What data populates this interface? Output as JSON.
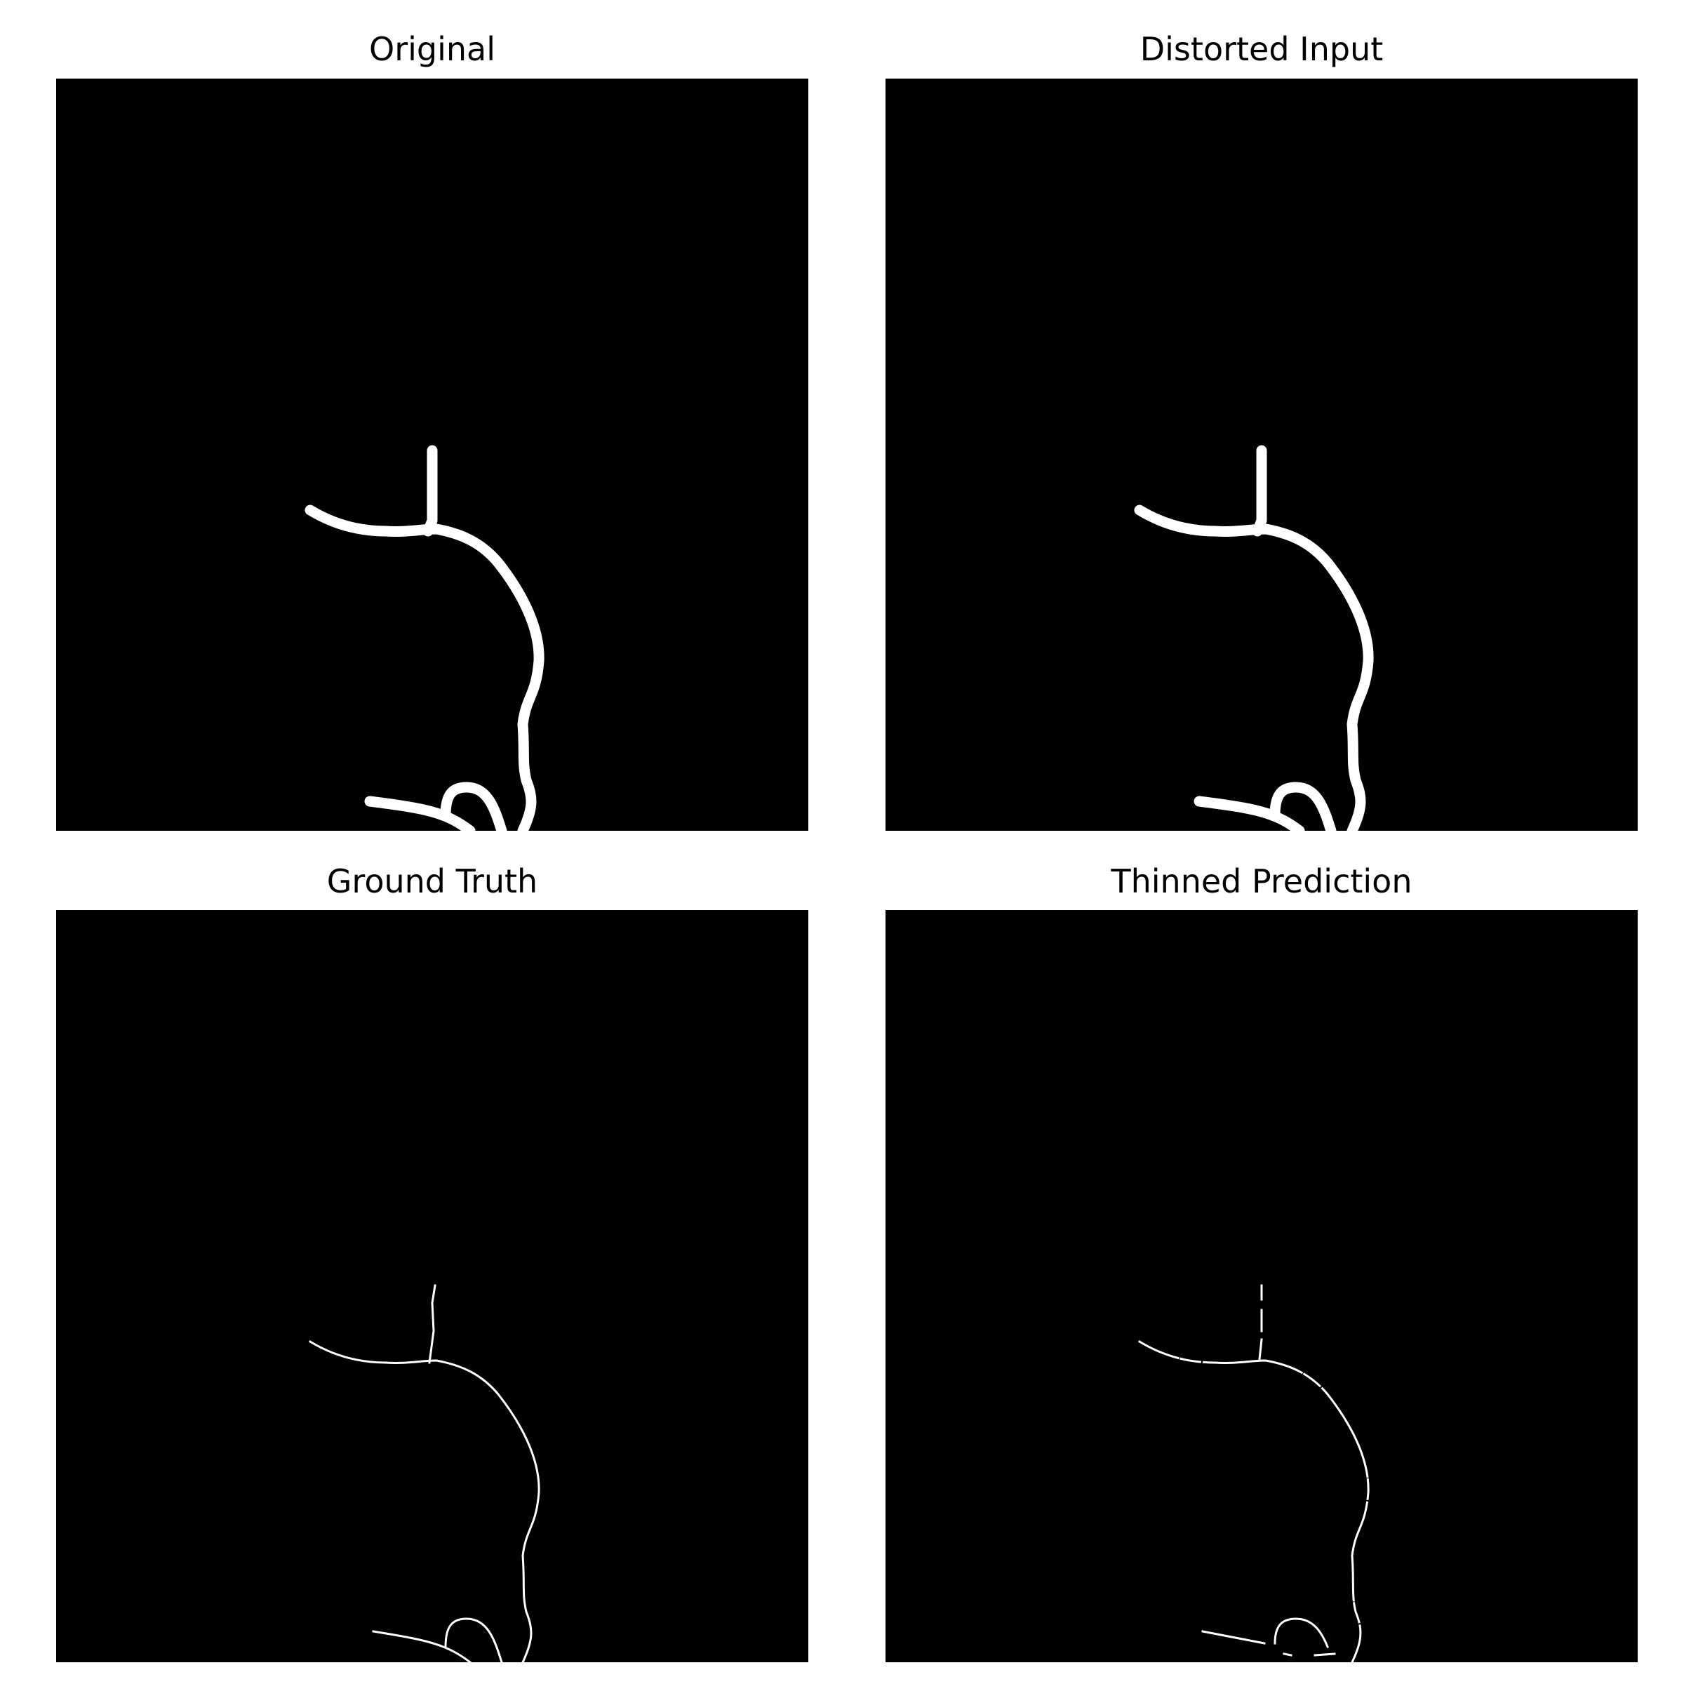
{
  "panels": [
    {
      "title": "Original",
      "stroke_style": "thick"
    },
    {
      "title": "Distorted Input",
      "stroke_style": "thick"
    },
    {
      "title": "Ground Truth",
      "stroke_style": "thin"
    },
    {
      "title": "Thinned Prediction",
      "stroke_style": "thin-broken"
    }
  ],
  "colors": {
    "background": "#ffffff",
    "image_background": "#000000",
    "stroke": "#ffffff"
  }
}
